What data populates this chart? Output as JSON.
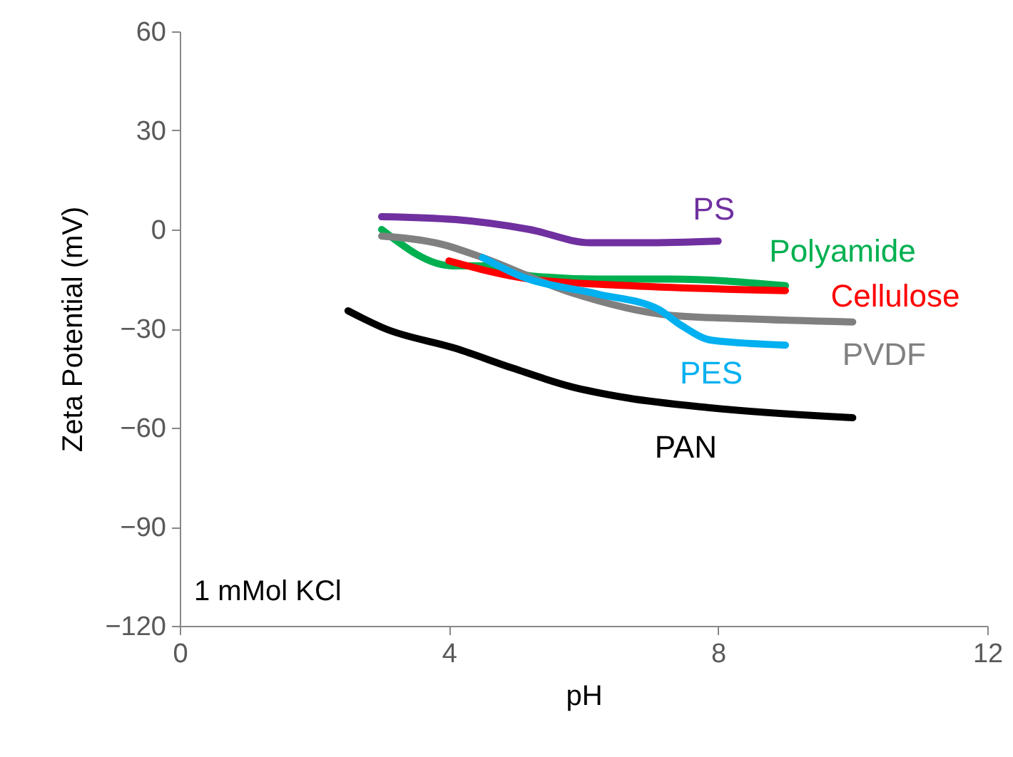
{
  "chart_data": {
    "type": "line",
    "xlabel": "pH",
    "ylabel": "Zeta Potential (mV)",
    "xlim": [
      0,
      12
    ],
    "xticks": [
      0,
      4,
      8,
      12
    ],
    "ylim": [
      -120,
      60
    ],
    "yticks": [
      -120,
      -90,
      -60,
      -30,
      0,
      30,
      60
    ],
    "grid": false,
    "marker": "none",
    "line_style": "solid",
    "annotations": [
      "1 mMol KCl"
    ],
    "series": [
      {
        "name": "PS",
        "color": "#7030a0",
        "x": [
          3.0,
          4.1,
          5.2,
          6.1,
          6.9,
          8.0
        ],
        "values": [
          3.9,
          3,
          0,
          -4,
          -4,
          -3.5
        ]
      },
      {
        "name": "Polyamide",
        "color": "#00b050",
        "x": [
          3.0,
          4.05,
          4.6,
          5.2,
          6.2,
          7.3,
          9.0
        ],
        "values": [
          0,
          -11,
          -11,
          -14,
          -15,
          -15,
          -17
        ]
      },
      {
        "name": "Cellulose",
        "color": "#ff0000",
        "x": [
          4.0,
          5.2,
          6.7,
          9.0
        ],
        "values": [
          -9.5,
          -15,
          -17,
          -18.5
        ]
      },
      {
        "name": "PVDF",
        "color": "#808080",
        "x": [
          3.0,
          3.9,
          4.5,
          5.8,
          7.3,
          8.35,
          10.0
        ],
        "values": [
          -2,
          -4.5,
          -8.5,
          -19,
          -26,
          -27,
          -28
        ]
      },
      {
        "name": "PES",
        "color": "#00b0f0",
        "x": [
          4.5,
          5.05,
          6.2,
          7.1,
          7.45,
          7.9,
          9.0
        ],
        "values": [
          -8.5,
          -14,
          -19.5,
          -24,
          -29,
          -33.5,
          -35
        ]
      },
      {
        "name": "PAN",
        "color": "#000000",
        "x": [
          2.5,
          3.05,
          4.1,
          4.95,
          5.8,
          6.65,
          7.9,
          10.0
        ],
        "values": [
          -24.6,
          -30,
          -36,
          -42,
          -47.5,
          -51,
          -54,
          -57
        ]
      }
    ]
  }
}
